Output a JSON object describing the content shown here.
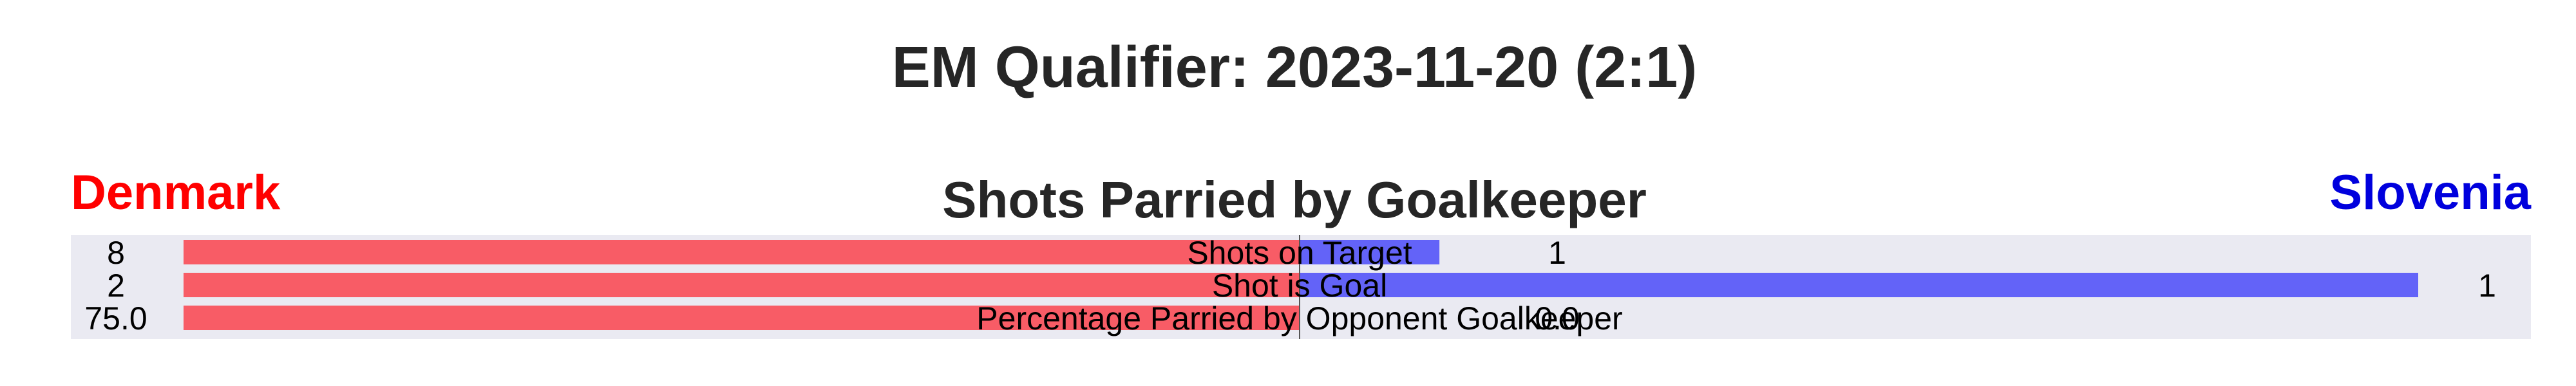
{
  "chart_data": {
    "type": "bar",
    "orientation": "horizontal-diverging",
    "title": "EM Qualifier: 2023-11-20 (2:1)",
    "subtitle": "Shots Parried by Goalkeeper",
    "teams": [
      {
        "name": "Denmark",
        "color": "#ff0000",
        "bar_color": "#f85c66"
      },
      {
        "name": "Slovenia",
        "color": "#0000dd",
        "bar_color": "#6363f8"
      }
    ],
    "categories": [
      "Shots on Target",
      "Shot is Goal",
      "Percentage Parried by Opponent Goalkeeper"
    ],
    "series": [
      {
        "name": "Denmark",
        "values": [
          8,
          2,
          75.0
        ],
        "labels": [
          "8",
          "2",
          "75.0"
        ]
      },
      {
        "name": "Slovenia",
        "values": [
          1,
          1,
          0.0
        ],
        "labels": [
          "1",
          "1",
          "0.0"
        ]
      }
    ],
    "normalized_share_left": [
      1.0,
      1.0,
      1.0
    ],
    "normalized_share_right": [
      0.125,
      1.0,
      0.0
    ],
    "grid": false,
    "background": "#eaeaf2"
  }
}
